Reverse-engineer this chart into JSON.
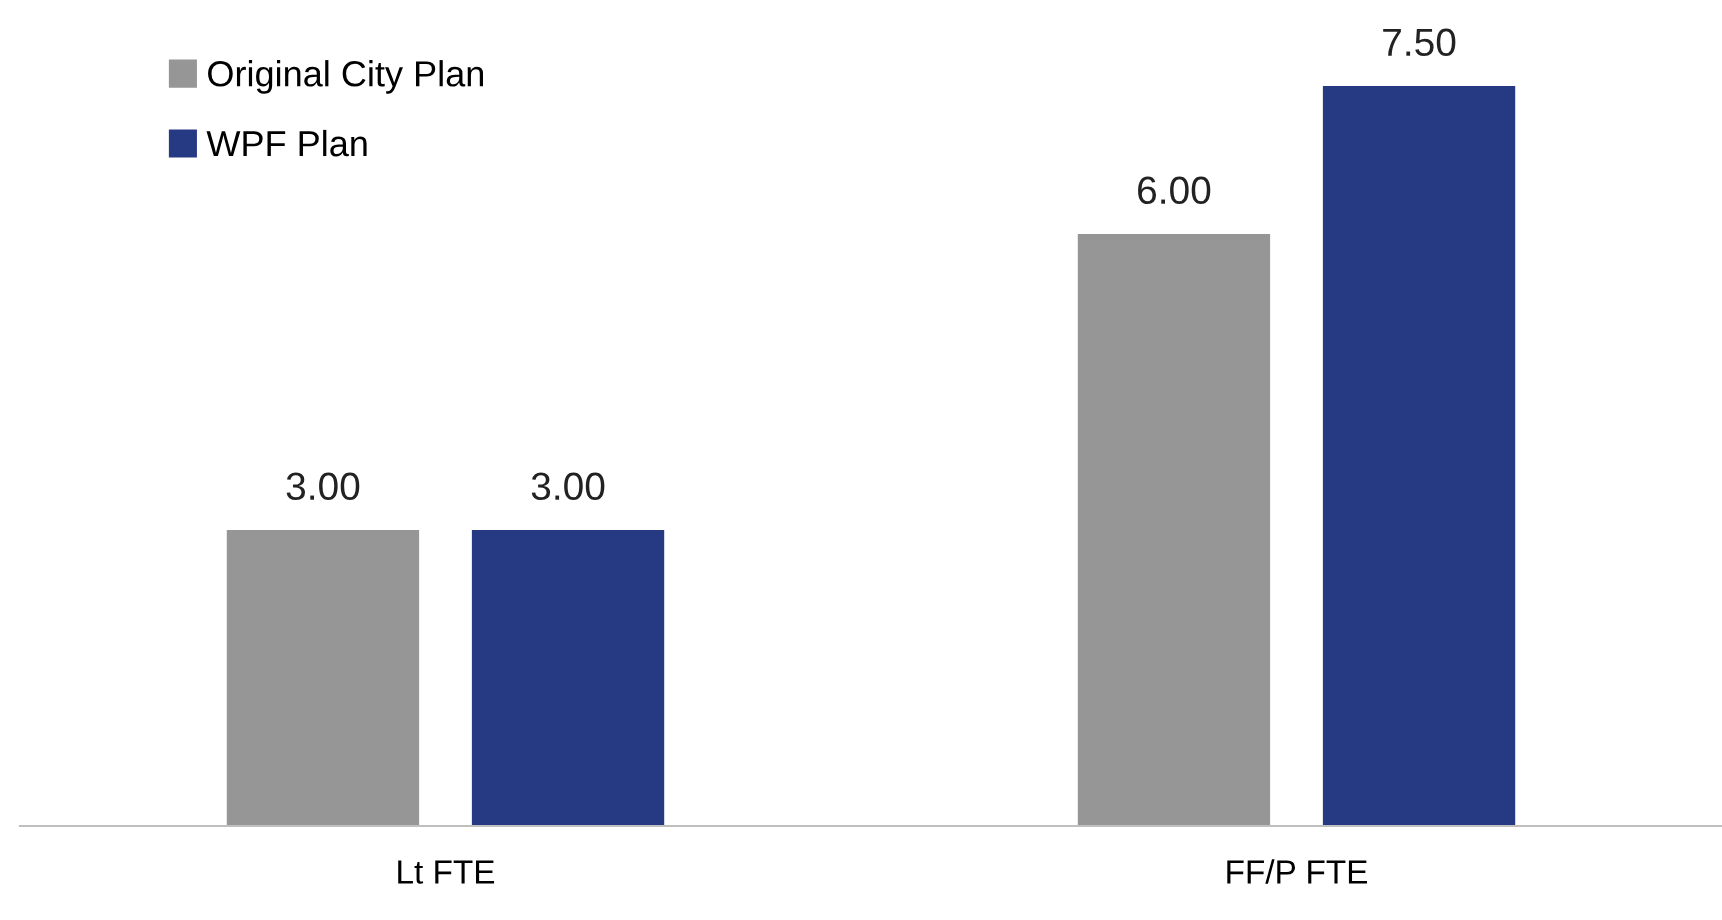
{
  "chart_data": {
    "type": "bar",
    "categories": [
      "Lt FTE",
      "FF/P FTE"
    ],
    "series": [
      {
        "name": "Original City Plan",
        "color": "#969696",
        "values": [
          3,
          6
        ],
        "value_labels": [
          "3.00",
          "6.00"
        ]
      },
      {
        "name": "WPF Plan",
        "color": "#263a84",
        "values": [
          3,
          7.5
        ],
        "value_labels": [
          "3.00",
          "7.50"
        ]
      }
    ],
    "legend": "top left",
    "grid": false
  }
}
